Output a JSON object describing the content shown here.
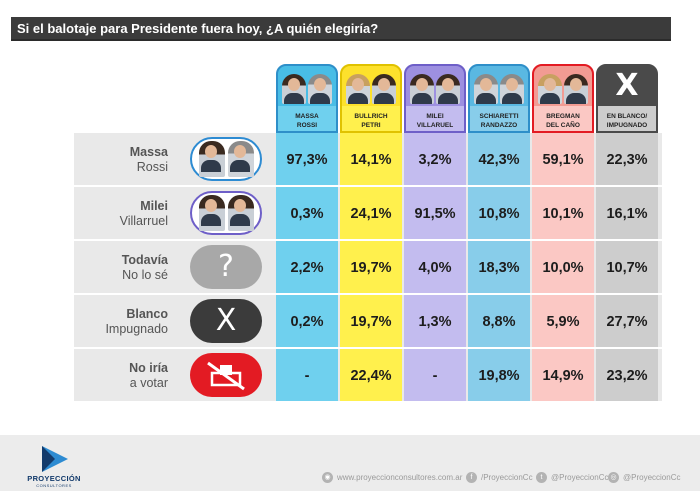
{
  "title": "Si el balotaje para Presidente fuera hoy, ¿A quién elegiría?",
  "colors": {
    "massa": "#6fd0ee",
    "bullrich": "#fff04d",
    "milei": "#c3bcef",
    "schiaretti": "#88cdea",
    "bregman": "#fbc8c4",
    "blanco": "#cdcdcd",
    "head_massa": "#48bde6",
    "head_bullrich": "#fde12c",
    "head_milei": "#9d90e0",
    "head_schiaretti": "#5ab8e2",
    "head_bregman": "#f29b93",
    "head_blanco": "#4a4a4a",
    "title_bar": "#3b3b3b",
    "logo_blue": "#2d8bd2"
  },
  "columns": [
    {
      "line1": "MASSA",
      "line2": "ROSSI",
      "icon": "candidate-photo"
    },
    {
      "line1": "BULLRICH",
      "line2": "PETRI",
      "icon": "candidate-photo"
    },
    {
      "line1": "MILEI",
      "line2": "VILLARUEL",
      "icon": "candidate-photo"
    },
    {
      "line1": "SCHIARETTI",
      "line2": "RANDAZZO",
      "icon": "candidate-photo"
    },
    {
      "line1": "BREGMAN",
      "line2": "DEL CAÑO",
      "icon": "candidate-photo"
    },
    {
      "line1": "EN BLANCO/",
      "line2": "IMPUGNADO",
      "icon": "x-icon"
    }
  ],
  "blank_glyph": "X",
  "rows": [
    {
      "line1": "Massa",
      "line2": "Rossi",
      "icon": "candidate-photo",
      "values": [
        "97,3%",
        "14,1%",
        "3,2%",
        "42,3%",
        "59,1%",
        "22,3%"
      ]
    },
    {
      "line1": "Milei",
      "line2": "Villarruel",
      "icon": "candidate-photo",
      "values": [
        "0,3%",
        "24,1%",
        "91,5%",
        "10,8%",
        "10,1%",
        "16,1%"
      ]
    },
    {
      "line1": "Todavía",
      "line2": "No lo sé",
      "icon": "question-icon",
      "glyph": "?",
      "values": [
        "2,2%",
        "19,7%",
        "4,0%",
        "18,3%",
        "10,0%",
        "10,7%"
      ]
    },
    {
      "line1": "Blanco",
      "line2": "Impugnado",
      "icon": "x-icon",
      "glyph": "X",
      "values": [
        "0,2%",
        "19,7%",
        "1,3%",
        "8,8%",
        "5,9%",
        "27,7%"
      ]
    },
    {
      "line1": "No iría",
      "line2": "a votar",
      "icon": "no-vote-icon",
      "values": [
        "-",
        "22,4%",
        "-",
        "19,8%",
        "14,9%",
        "23,2%"
      ]
    }
  ],
  "footer": {
    "brand": "PROYECCIÓN",
    "brand_sub": "CONSULTORES",
    "website": "www.proyeccionconsultores.com.ar",
    "facebook": "/ProyeccionCc",
    "twitter": "@ProyeccionCc",
    "instagram": "@ProyeccionCc"
  }
}
